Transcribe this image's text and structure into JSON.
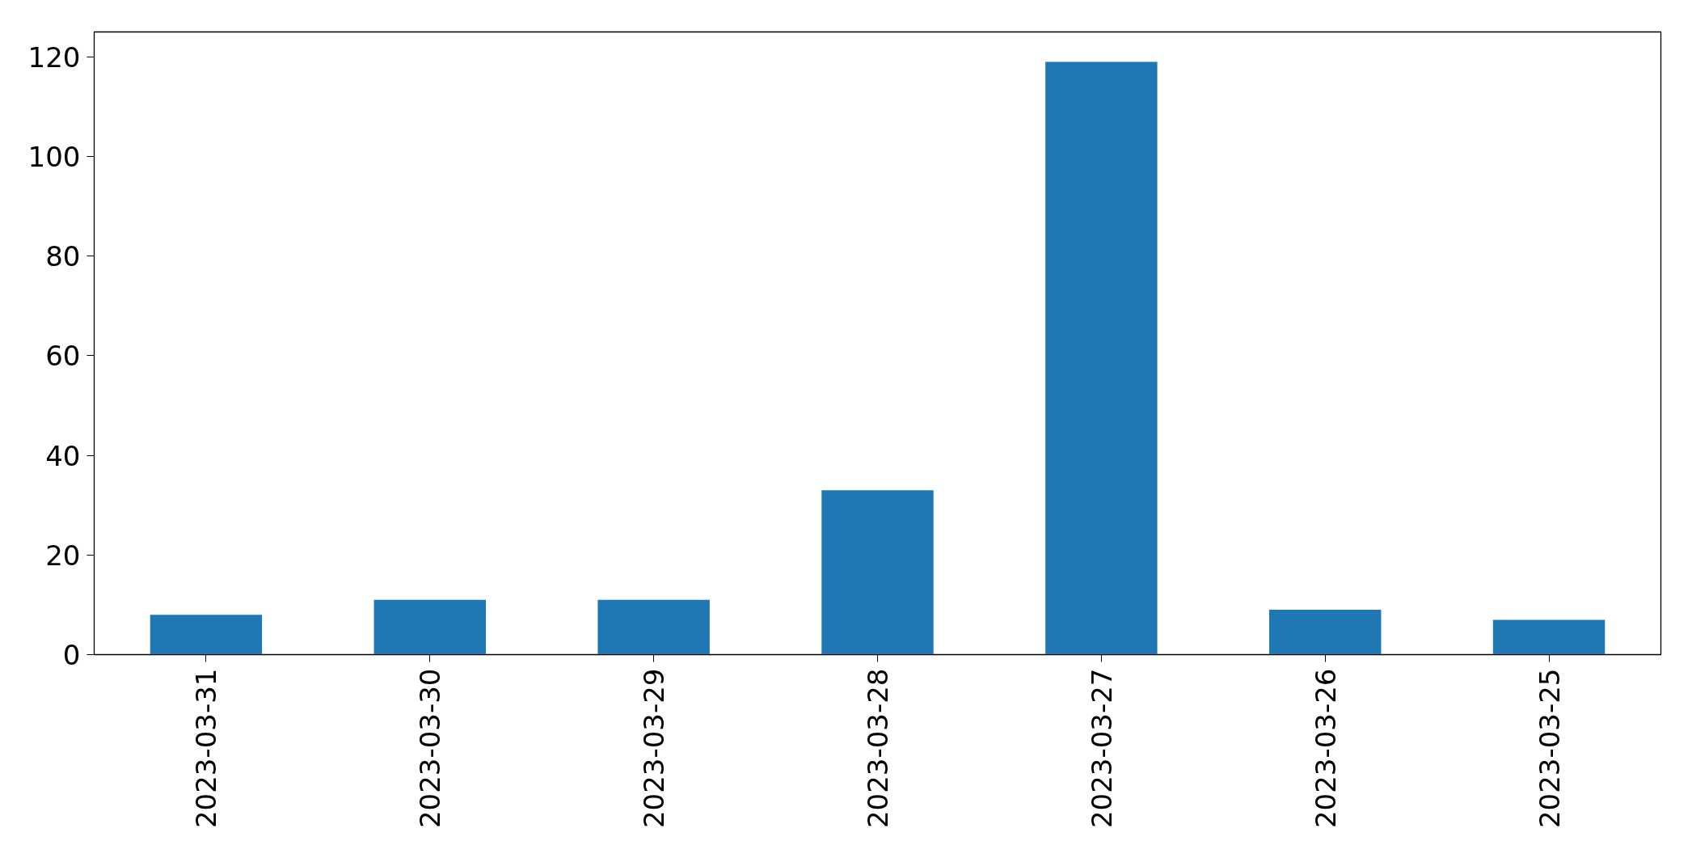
{
  "chart_data": {
    "type": "bar",
    "categories": [
      "2023-03-31",
      "2023-03-30",
      "2023-03-29",
      "2023-03-28",
      "2023-03-27",
      "2023-03-26",
      "2023-03-25"
    ],
    "values": [
      8,
      11,
      11,
      33,
      119,
      9,
      7
    ],
    "color": "#1f77b4",
    "ylim": [
      0,
      125
    ],
    "yticks": [
      0,
      20,
      40,
      60,
      80,
      100,
      120
    ]
  }
}
